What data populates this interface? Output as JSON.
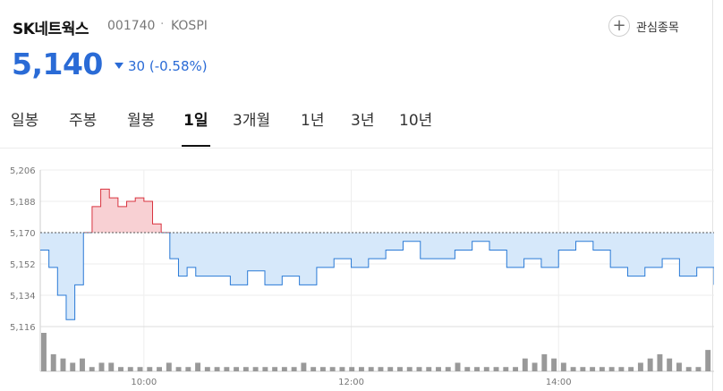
{
  "stock": {
    "name": "SK네트웍스",
    "code": "001740",
    "separator": "·",
    "market": "KOSPI",
    "price": "5,140",
    "change": "30 (-0.58%)",
    "direction": "down",
    "color_down": "#2a6bd6",
    "color_up": "#d9333f"
  },
  "favorite": {
    "icon": "plus-icon",
    "label": "관심종목"
  },
  "tabs": [
    {
      "label": "일봉",
      "active": false
    },
    {
      "label": "주봉",
      "active": false
    },
    {
      "label": "월봉",
      "active": false
    },
    {
      "label": "1일",
      "active": true
    },
    {
      "label": "3개월",
      "active": false
    },
    {
      "label": "1년",
      "active": false
    },
    {
      "label": "3년",
      "active": false
    },
    {
      "label": "10년",
      "active": false
    }
  ],
  "chart_data": {
    "type": "line",
    "reference_price": 5170,
    "ylim": [
      5116,
      5206
    ],
    "y_ticks": [
      "5,206",
      "5,188",
      "5,170",
      "5,152",
      "5,134",
      "5,116"
    ],
    "x_ticks": [
      "10:00",
      "12:00",
      "14:00"
    ],
    "x_range": [
      "09:00",
      "15:30"
    ],
    "grid": true,
    "series": [
      {
        "x": [
          "09:00",
          "09:05",
          "09:10",
          "09:15",
          "09:20",
          "09:25",
          "09:30",
          "09:35",
          "09:40",
          "09:45",
          "09:50",
          "09:55",
          "10:00",
          "10:05",
          "10:10",
          "10:15",
          "10:20",
          "10:25",
          "10:30",
          "10:40",
          "10:50",
          "11:00",
          "11:10",
          "11:20",
          "11:30",
          "11:40",
          "11:50",
          "12:00",
          "12:10",
          "12:20",
          "12:30",
          "12:40",
          "12:50",
          "13:00",
          "13:10",
          "13:20",
          "13:30",
          "13:40",
          "13:50",
          "14:00",
          "14:10",
          "14:20",
          "14:30",
          "14:40",
          "14:50",
          "15:00",
          "15:10",
          "15:20",
          "15:30"
        ],
        "values": [
          5160,
          5150,
          5134,
          5120,
          5140,
          5170,
          5185,
          5195,
          5190,
          5185,
          5188,
          5190,
          5188,
          5175,
          5170,
          5155,
          5145,
          5150,
          5145,
          5145,
          5140,
          5148,
          5140,
          5145,
          5140,
          5150,
          5155,
          5150,
          5155,
          5160,
          5165,
          5155,
          5155,
          5160,
          5165,
          5160,
          5150,
          5155,
          5150,
          5160,
          5165,
          5160,
          5150,
          5145,
          5150,
          5155,
          5145,
          5150,
          5140
        ]
      }
    ],
    "volume": [
      9,
      4,
      3,
      2,
      3,
      1,
      2,
      2,
      1,
      1,
      1,
      1,
      1,
      2,
      1,
      1,
      2,
      1,
      1,
      1,
      1,
      1,
      1,
      1,
      1,
      1,
      1,
      2,
      1,
      1,
      1,
      1,
      1,
      1,
      1,
      1,
      1,
      1,
      1,
      1,
      1,
      1,
      1,
      2,
      1,
      1,
      1,
      1,
      1,
      1,
      3,
      2,
      4,
      3,
      2,
      1,
      1,
      1,
      1,
      1,
      1,
      1,
      2,
      3,
      4,
      3,
      2,
      1,
      1,
      5
    ]
  },
  "colors": {
    "line_down": "#2a7ad6",
    "fill_down": "#d6e8fa",
    "line_up": "#d9333f",
    "fill_up": "#f8d0d3",
    "volume_bar": "#999999"
  }
}
